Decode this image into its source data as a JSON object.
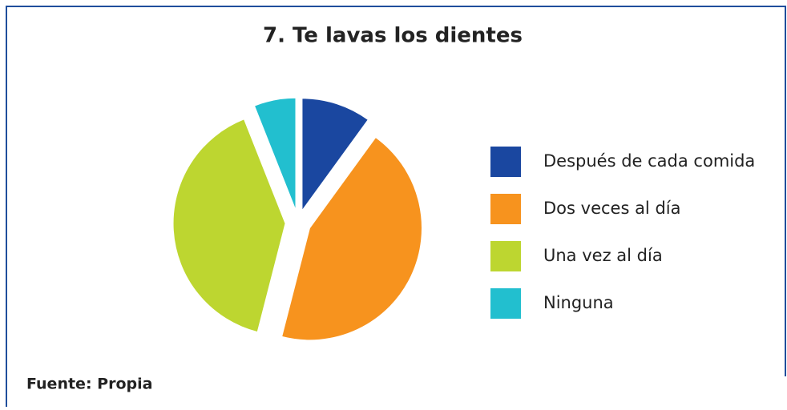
{
  "chart_data": {
    "type": "pie",
    "title": "7. Te lavas los dientes",
    "categories": [
      "Después de cada comida",
      "Dos veces al día",
      "Una vez al día",
      "Ninguna"
    ],
    "values": [
      10,
      44,
      40,
      6
    ],
    "colors": [
      "#1a47a0",
      "#f7931e",
      "#bdd630",
      "#22bfcf"
    ],
    "legend": "right",
    "source": "Fuente: Propia"
  }
}
